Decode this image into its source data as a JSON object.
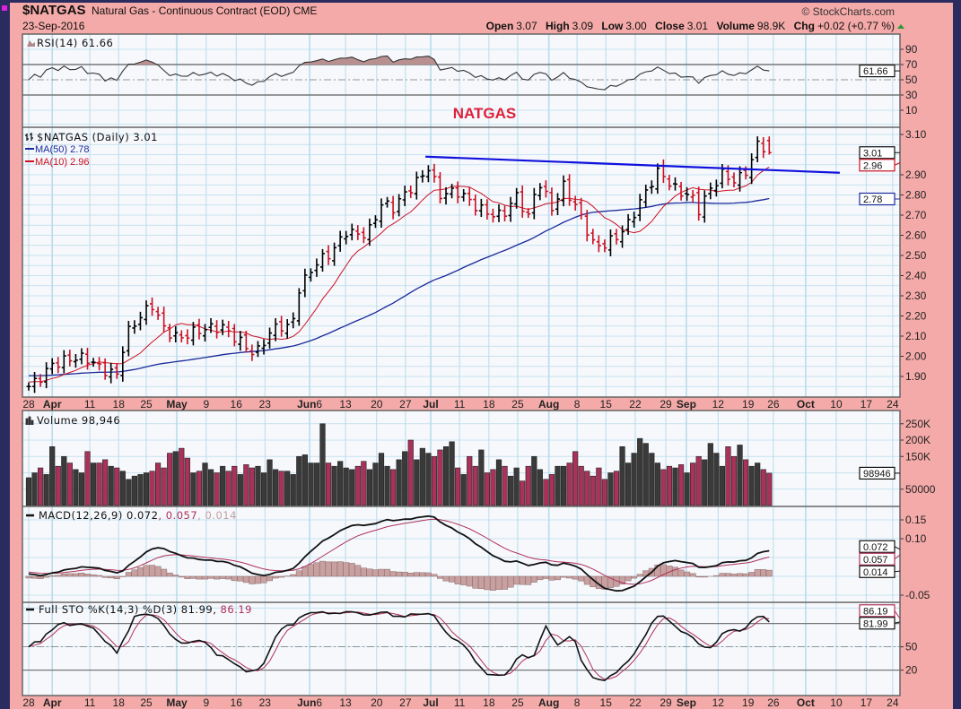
{
  "header": {
    "symbol": "$NATGAS",
    "description": "Natural Gas - Continuous Contract (EOD) CME",
    "date": "23-Sep-2016",
    "copyright": "© StockCharts.com",
    "open_label": "Open",
    "open": "3.07",
    "high_label": "High",
    "high": "3.09",
    "low_label": "Low",
    "low": "3.00",
    "close_label": "Close",
    "close": "3.01",
    "volume_label": "Volume",
    "volume": "98.9K",
    "chg_label": "Chg",
    "chg": "+0.02 (+0.77 %)"
  },
  "annotation": "NATGAS",
  "colors": {
    "background": "#f4aaa8",
    "plot": "#f6f8fc",
    "grid": "#b9dcec",
    "up": "#000000",
    "down": "#cc1122",
    "ma50": "#1a2a9a",
    "ma10": "#cc1122",
    "trendline": "#1010dd",
    "vol_up": "#3a3a3a",
    "vol_down": "#a8325a",
    "signal": "#b0305a",
    "hist": "#c8a0a0"
  },
  "panels": {
    "rsi": {
      "label": "RSI(14) 61.66",
      "tag": "61.66",
      "ticks": [
        "90",
        "70",
        "50",
        "30",
        "10"
      ]
    },
    "price": {
      "label": "$NATGAS (Daily) 3.01",
      "ma50_label": "MA(50) 2.78",
      "ma10_label": "MA(10) 2.96",
      "tags": {
        "close": "3.01",
        "ma10": "2.96",
        "ma50": "2.78"
      },
      "ticks": [
        "3.10",
        "2.90",
        "2.80",
        "2.70",
        "2.60",
        "2.50",
        "2.40",
        "2.30",
        "2.20",
        "2.10",
        "2.00",
        "1.90"
      ]
    },
    "volume": {
      "label": "Volume 98,946",
      "tag": "98946",
      "ticks": [
        "250K",
        "200K",
        "150K",
        "50000"
      ]
    },
    "macd": {
      "label": "MACD(12,26,9) 0.072",
      "signal": ", 0.057",
      "hist": ", 0.014",
      "tags": [
        "0.072",
        "0.057",
        "0.014"
      ],
      "ticks": [
        "0.15",
        "0.10",
        "-0.05"
      ]
    },
    "sto": {
      "label": "Full STO %K(14,3) %D(3) 81.99,",
      "d": " 86.19",
      "tag": "81.99",
      "ticks": [
        "50",
        "20"
      ]
    }
  },
  "date_ticks": [
    {
      "label": "28",
      "i": 0
    },
    {
      "label": "Apr",
      "i": 4,
      "month": true
    },
    {
      "label": "11",
      "i": 10.4
    },
    {
      "label": "18",
      "i": 15.3
    },
    {
      "label": "25",
      "i": 20
    },
    {
      "label": "May",
      "i": 25.2,
      "month": true
    },
    {
      "label": "9",
      "i": 30.2
    },
    {
      "label": "16",
      "i": 35.3
    },
    {
      "label": "23",
      "i": 40.2
    },
    {
      "label": "Jun",
      "suffix": "6",
      "i": 47.8,
      "month": true
    },
    {
      "label": "13",
      "i": 53.9
    },
    {
      "label": "20",
      "i": 59.2
    },
    {
      "label": "27",
      "i": 64.1
    },
    {
      "label": "Jul",
      "i": 68.4,
      "month": true
    },
    {
      "label": "11",
      "i": 73.3
    },
    {
      "label": "18",
      "i": 78.3
    },
    {
      "label": "25",
      "i": 83.2
    },
    {
      "label": "Aug",
      "i": 88.5,
      "month": true
    },
    {
      "label": "8",
      "i": 93.3
    },
    {
      "label": "15",
      "i": 98.2
    },
    {
      "label": "22",
      "i": 103.2
    },
    {
      "label": "29",
      "i": 108.4
    },
    {
      "label": "Sep",
      "i": 111.9,
      "month": true
    },
    {
      "label": "12",
      "i": 117.3
    },
    {
      "label": "19",
      "i": 122.4
    },
    {
      "label": "26",
      "i": 126.7
    },
    {
      "label": "Oct",
      "i": 132.2,
      "month": true
    },
    {
      "label": "10",
      "i": 137.4
    },
    {
      "label": "17",
      "i": 142.5
    },
    {
      "label": "24",
      "i": 147
    }
  ],
  "chart_data": {
    "type": "ohlc",
    "title": "$NATGAS Natural Gas - Continuous Contract (EOD) CME",
    "x_unit": "trading-day index from 28-Mar-2016",
    "price_ylim": [
      1.85,
      3.12
    ],
    "close_anchors": [
      [
        0,
        1.85
      ],
      [
        4,
        1.97
      ],
      [
        10,
        1.98
      ],
      [
        15,
        1.92
      ],
      [
        16.5,
        2.1
      ],
      [
        19.5,
        2.2
      ],
      [
        21,
        2.25
      ],
      [
        23,
        2.15
      ],
      [
        25.5,
        2.1
      ],
      [
        30,
        2.12
      ],
      [
        33,
        2.15
      ],
      [
        35.5,
        2.1
      ],
      [
        38.6,
        2.0
      ],
      [
        41,
        2.1
      ],
      [
        42.5,
        2.15
      ],
      [
        44.7,
        2.15
      ],
      [
        46,
        2.35
      ],
      [
        48.5,
        2.45
      ],
      [
        51.6,
        2.5
      ],
      [
        54,
        2.62
      ],
      [
        57.7,
        2.62
      ],
      [
        60,
        2.75
      ],
      [
        62,
        2.72
      ],
      [
        65.3,
        2.85
      ],
      [
        68,
        2.95
      ],
      [
        70,
        2.8
      ],
      [
        73,
        2.8
      ],
      [
        76,
        2.75
      ],
      [
        80.6,
        2.7
      ],
      [
        83,
        2.78
      ],
      [
        85,
        2.68
      ],
      [
        86.7,
        2.88
      ],
      [
        89,
        2.75
      ],
      [
        91,
        2.85
      ],
      [
        93.6,
        2.7
      ],
      [
        96,
        2.55
      ],
      [
        97.4,
        2.55
      ],
      [
        100.5,
        2.62
      ],
      [
        102,
        2.66
      ],
      [
        105,
        2.8
      ],
      [
        107.3,
        2.92
      ],
      [
        109.6,
        2.85
      ],
      [
        112.7,
        2.8
      ],
      [
        114,
        2.72
      ],
      [
        115.7,
        2.8
      ],
      [
        118,
        2.9
      ],
      [
        120.3,
        2.88
      ],
      [
        122.6,
        2.95
      ],
      [
        124,
        3.05
      ],
      [
        126,
        3.01
      ]
    ],
    "bars": 127,
    "volume_k": [
      85,
      100,
      115,
      95,
      180,
      120,
      150,
      130,
      110,
      100,
      165,
      130,
      130,
      140,
      120,
      115,
      105,
      80,
      90,
      95,
      100,
      105,
      130,
      115,
      160,
      165,
      175,
      145,
      100,
      105,
      130,
      110,
      100,
      120,
      105,
      120,
      95,
      125,
      115,
      120,
      100,
      140,
      110,
      105,
      105,
      95,
      150,
      155,
      130,
      130,
      250,
      130,
      120,
      135,
      115,
      110,
      120,
      135,
      110,
      130,
      160,
      120,
      110,
      140,
      165,
      200,
      140,
      175,
      160,
      150,
      170,
      180,
      195,
      115,
      95,
      150,
      120,
      170,
      100,
      110,
      140,
      120,
      90,
      115,
      75,
      120,
      150,
      110,
      80,
      95,
      120,
      120,
      130,
      165,
      120,
      105,
      90,
      115,
      80,
      100,
      105,
      180,
      130,
      160,
      205,
      190,
      160,
      130,
      110,
      120,
      115,
      125,
      100,
      130,
      150,
      140,
      190,
      160,
      120,
      180,
      150,
      185,
      140,
      120,
      130,
      110,
      98.9
    ],
    "trendline": [
      [
        67.5,
        2.99
      ],
      [
        138,
        2.91
      ]
    ],
    "series": [
      "Price OHLC",
      "MA(50)",
      "MA(10)",
      "RSI(14)",
      "Volume",
      "MACD(12,26,9)",
      "Signal",
      "Histogram",
      "%K(14,3)",
      "%D(3)"
    ]
  }
}
